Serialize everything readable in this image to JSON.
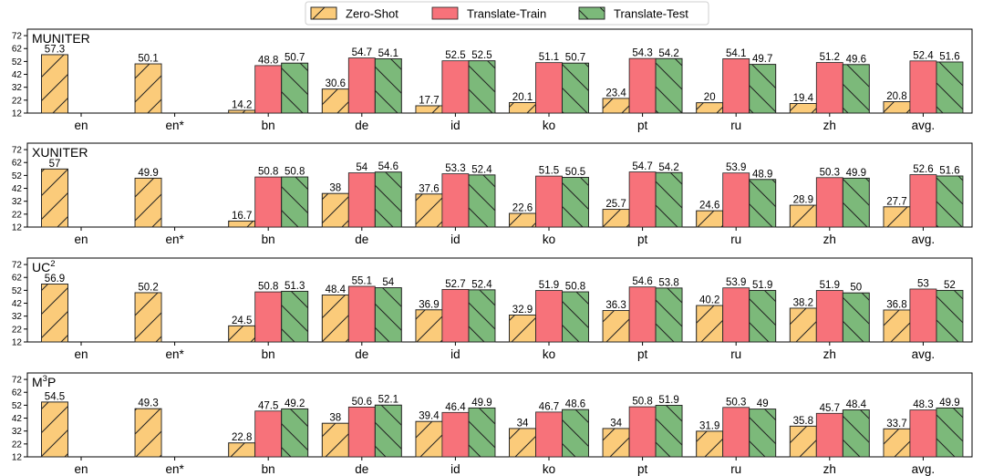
{
  "chart_data": {
    "type": "bar",
    "legend": {
      "position": "top-center",
      "entries": [
        "Zero-Shot",
        "Translate-Train",
        "Translate-Test"
      ]
    },
    "colors": {
      "Zero-Shot": "#FBCB7A",
      "Translate-Train": "#F7727A",
      "Translate-Test": "#7CB97A"
    },
    "hatches": {
      "Zero-Shot": "/",
      "Translate-Train": "",
      "Translate-Test": "\\"
    },
    "ylim": [
      12,
      77
    ],
    "yticks": [
      12,
      22,
      32,
      42,
      52,
      62,
      72
    ],
    "categories": [
      "en",
      "en*",
      "bn",
      "de",
      "id",
      "ko",
      "pt",
      "ru",
      "zh",
      "avg."
    ],
    "panels": [
      {
        "title": "MUNITER",
        "title_sup": "",
        "title_suffix": "",
        "series": [
          {
            "name": "Zero-Shot",
            "values": [
              57.3,
              50.1,
              14.2,
              30.6,
              17.7,
              20.1,
              23.4,
              20,
              19.4,
              20.8
            ]
          },
          {
            "name": "Translate-Train",
            "values": [
              null,
              null,
              48.8,
              54.7,
              52.5,
              51.1,
              54.3,
              54.1,
              51.2,
              52.4
            ]
          },
          {
            "name": "Translate-Test",
            "values": [
              null,
              null,
              50.7,
              54.1,
              52.5,
              50.7,
              54.2,
              49.7,
              49.6,
              51.6
            ]
          }
        ]
      },
      {
        "title": "XUNITER",
        "title_sup": "",
        "title_suffix": "",
        "series": [
          {
            "name": "Zero-Shot",
            "values": [
              57,
              49.9,
              16.7,
              38,
              37.6,
              22.6,
              25.7,
              24.6,
              28.9,
              27.7
            ]
          },
          {
            "name": "Translate-Train",
            "values": [
              null,
              null,
              50.8,
              54,
              53.3,
              51.5,
              54.7,
              53.9,
              50.3,
              52.6
            ]
          },
          {
            "name": "Translate-Test",
            "values": [
              null,
              null,
              50.8,
              54.6,
              52.4,
              50.5,
              54.2,
              48.9,
              49.9,
              51.6
            ]
          }
        ]
      },
      {
        "title": "UC",
        "title_sup": "2",
        "title_suffix": "",
        "series": [
          {
            "name": "Zero-Shot",
            "values": [
              56.9,
              50.2,
              24.5,
              48.4,
              36.9,
              32.9,
              36.3,
              40.2,
              38.2,
              36.8
            ]
          },
          {
            "name": "Translate-Train",
            "values": [
              null,
              null,
              50.8,
              55.1,
              52.7,
              51.9,
              54.6,
              53.9,
              51.9,
              53
            ]
          },
          {
            "name": "Translate-Test",
            "values": [
              null,
              null,
              51.3,
              54,
              52.4,
              50.8,
              53.8,
              51.9,
              50,
              52
            ]
          }
        ]
      },
      {
        "title": "M",
        "title_sup": "3",
        "title_suffix": "P",
        "series": [
          {
            "name": "Zero-Shot",
            "values": [
              54.5,
              49.3,
              22.8,
              38,
              39.4,
              34,
              34,
              31.9,
              35.8,
              33.7
            ]
          },
          {
            "name": "Translate-Train",
            "values": [
              null,
              null,
              47.5,
              50.6,
              46.4,
              46.7,
              50.8,
              50.3,
              45.7,
              48.3
            ]
          },
          {
            "name": "Translate-Test",
            "values": [
              null,
              null,
              49.2,
              52.1,
              49.9,
              48.6,
              51.9,
              49,
              48.4,
              49.9
            ]
          }
        ]
      }
    ]
  }
}
